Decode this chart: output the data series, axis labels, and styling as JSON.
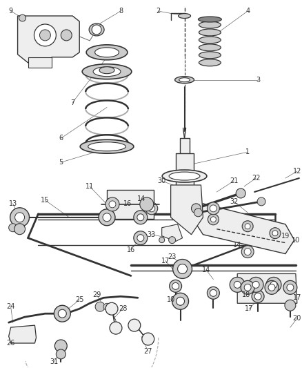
{
  "bg_color": "#ffffff",
  "line_color": "#333333",
  "label_fontsize": 7.0,
  "figsize": [
    4.38,
    5.33
  ],
  "dpi": 100,
  "gray_fill": "#cccccc",
  "dark_fill": "#888888",
  "light_fill": "#eeeeee"
}
